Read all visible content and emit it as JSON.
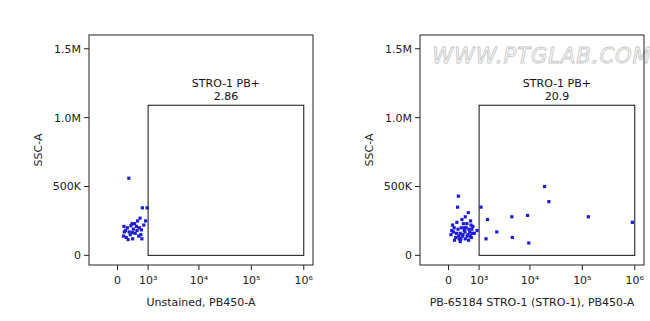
{
  "chart_data": [
    {
      "type": "scatter",
      "x_label": "Unstained, PB450-A",
      "y_label": "SSC-A",
      "color": "#1c1cd8",
      "marker": "square",
      "xlim": [
        -900,
        1500000
      ],
      "ylim": [
        -70000,
        1600000
      ],
      "xticks": [
        0,
        {
          "value": 1000,
          "label": "10³"
        },
        {
          "value": 10000,
          "label": "10⁴"
        },
        {
          "value": 100000,
          "label": "10⁵"
        },
        {
          "value": 1000000,
          "label": "10⁶"
        }
      ],
      "yticks": [
        0,
        {
          "value": 500000,
          "label": "500K"
        },
        {
          "value": 1000000,
          "label": "1.0M"
        },
        {
          "value": 1500000,
          "label": "1.5M"
        }
      ],
      "gate": {
        "label": "STRO-1 PB+",
        "value": 2.86,
        "x": [
          1000,
          1000000
        ],
        "y": [
          0,
          1090000
        ]
      },
      "x": [
        290,
        740,
        950,
        650,
        560,
        380,
        160,
        200,
        250,
        300,
        350,
        420,
        480,
        520,
        600,
        680,
        720,
        150,
        220,
        330,
        400,
        460,
        540,
        620,
        700,
        170,
        270,
        390,
        800,
        880
      ],
      "values": [
        560000,
        345000,
        345000,
        270000,
        250000,
        230000,
        210000,
        180000,
        200000,
        170000,
        215000,
        190000,
        160000,
        210000,
        140000,
        150000,
        120000,
        140000,
        130000,
        150000,
        120000,
        230000,
        180000,
        200000,
        185000,
        170000,
        115000,
        165000,
        220000,
        250000
      ]
    },
    {
      "type": "scatter",
      "x_label": "PB-65184 STRO-1 (STRO-1), PB450-A",
      "y_label": "SSC-A",
      "color": "#1c1cd8",
      "marker": "square",
      "watermark": "WWW.PTGLAB.COM",
      "xlim": [
        -900,
        1500000
      ],
      "ylim": [
        -70000,
        1600000
      ],
      "xticks": [
        0,
        {
          "value": 1000,
          "label": "10³"
        },
        {
          "value": 10000,
          "label": "10⁴"
        },
        {
          "value": 100000,
          "label": "10⁵"
        },
        {
          "value": 1000000,
          "label": "10⁶"
        }
      ],
      "yticks": [
        0,
        {
          "value": 500000,
          "label": "500K"
        },
        {
          "value": 1000000,
          "label": "1.0M"
        },
        {
          "value": 1500000,
          "label": "1.5M"
        }
      ],
      "gate": {
        "label": "STRO-1 PB+",
        "value": 20.9,
        "x": [
          1000,
          1000000
        ],
        "y": [
          0,
          1090000
        ]
      },
      "x": [
        60,
        120,
        180,
        240,
        300,
        360,
        420,
        480,
        540,
        600,
        660,
        720,
        100,
        150,
        210,
        270,
        330,
        390,
        450,
        510,
        570,
        630,
        690,
        80,
        140,
        200,
        260,
        320,
        380,
        440,
        500,
        560,
        620,
        680,
        250,
        350,
        450,
        550,
        650,
        230,
        430,
        780,
        300,
        900,
        1400,
        1500,
        2300,
        4500,
        4600,
        9500,
        9000,
        19000,
        23000,
        130000,
        900000,
        1100
      ],
      "values": [
        150000,
        170000,
        130000,
        190000,
        160000,
        140000,
        180000,
        200000,
        150000,
        170000,
        130000,
        210000,
        220000,
        110000,
        240000,
        120000,
        200000,
        230000,
        120000,
        140000,
        190000,
        250000,
        160000,
        180000,
        200000,
        160000,
        140000,
        120000,
        150000,
        170000,
        230000,
        110000,
        140000,
        190000,
        430000,
        260000,
        280000,
        310000,
        220000,
        350000,
        200000,
        160000,
        100000,
        180000,
        120000,
        260000,
        170000,
        280000,
        130000,
        90000,
        290000,
        500000,
        390000,
        280000,
        240000,
        350000
      ]
    }
  ]
}
